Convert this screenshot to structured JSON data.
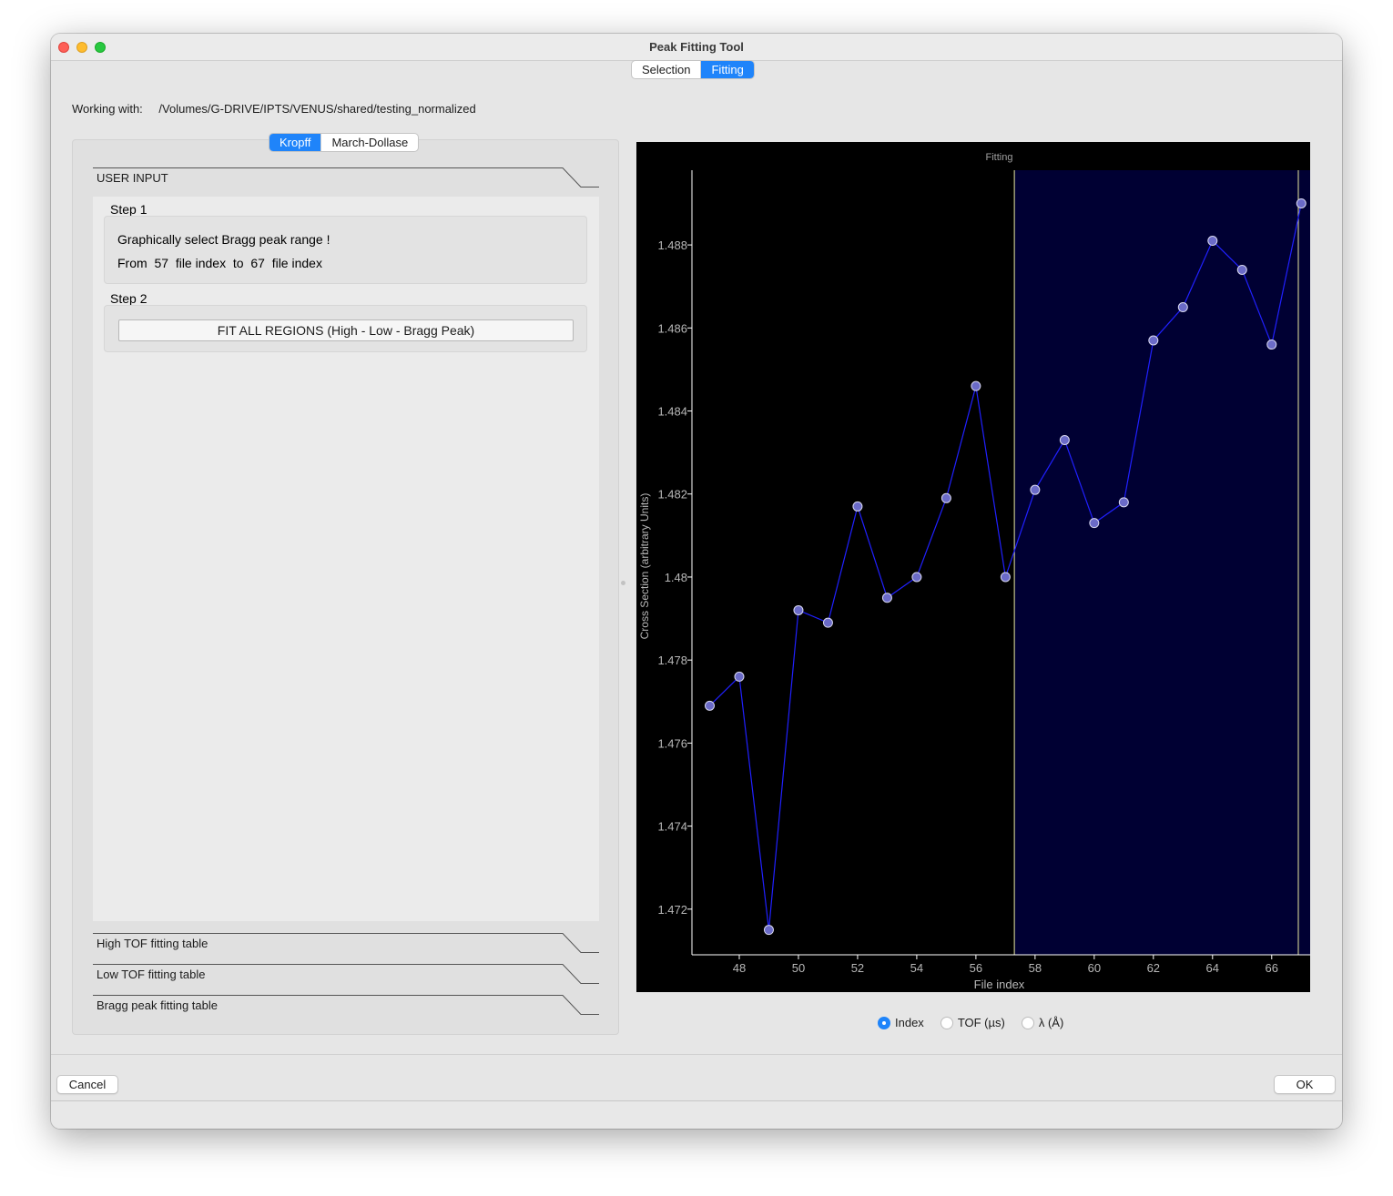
{
  "window": {
    "title": "Peak Fitting Tool"
  },
  "main_tabs": [
    {
      "label": "Selection",
      "active": false
    },
    {
      "label": "Fitting",
      "active": true
    }
  ],
  "working": {
    "label": "Working with:",
    "path": "/Volumes/G-DRIVE/IPTS/VENUS/shared/testing_normalized"
  },
  "method_tabs": [
    {
      "label": "Kropff",
      "active": true
    },
    {
      "label": "March-Dollase",
      "active": false
    }
  ],
  "user_input": {
    "header": "USER INPUT",
    "step1": {
      "title": "Step 1",
      "instruction": "Graphically select Bragg peak range !",
      "range": {
        "from_label": "From",
        "from_value": "57",
        "unit_label": "file index",
        "to_label": "to",
        "to_value": "67",
        "unit_label2": "file index"
      }
    },
    "step2": {
      "title": "Step 2",
      "button_label": "FIT ALL REGIONS  (High - Low - Bragg Peak)"
    }
  },
  "collapsed_sections": [
    {
      "label": "High TOF fitting table"
    },
    {
      "label": "Low TOF fitting table"
    },
    {
      "label": "Bragg peak fitting table"
    }
  ],
  "x_axis_options": [
    {
      "label": "Index",
      "selected": true
    },
    {
      "label": "TOF (µs)",
      "selected": false
    },
    {
      "label": "λ (Å)",
      "selected": false
    }
  ],
  "buttons": {
    "cancel": "Cancel",
    "ok": "OK"
  },
  "colors": {
    "accent": "#1f84fa",
    "plot_background": "#000000",
    "selection_fill": "#000033",
    "selection_line": "#e8e8a0",
    "series_line": "#2020ff",
    "marker_fill": "#6b6bc8"
  },
  "chart_data": {
    "type": "line",
    "title": "Fitting",
    "xlabel": "File index",
    "ylabel": "Cross Section (arbitrary Units)",
    "xlim": [
      46.4,
      67.3
    ],
    "ylim": [
      1.4709,
      1.4898
    ],
    "xticks": [
      48,
      50,
      52,
      54,
      56,
      58,
      60,
      62,
      64,
      66
    ],
    "yticks": [
      1.472,
      1.474,
      1.476,
      1.478,
      1.48,
      1.482,
      1.484,
      1.486,
      1.488
    ],
    "grid": false,
    "selection_range": [
      57.3,
      66.9
    ],
    "series": [
      {
        "x": [
          47,
          48,
          49,
          50,
          51,
          52,
          53,
          54,
          55,
          56,
          57,
          58,
          59,
          60,
          61,
          62,
          63,
          64,
          65,
          66,
          67
        ],
        "y": [
          1.4769,
          1.4776,
          1.4715,
          1.4792,
          1.4789,
          1.4817,
          1.4795,
          1.48,
          1.4819,
          1.4846,
          1.48,
          1.4821,
          1.4833,
          1.4813,
          1.4818,
          1.4857,
          1.4865,
          1.4881,
          1.4874,
          1.4856,
          1.489
        ]
      }
    ]
  }
}
